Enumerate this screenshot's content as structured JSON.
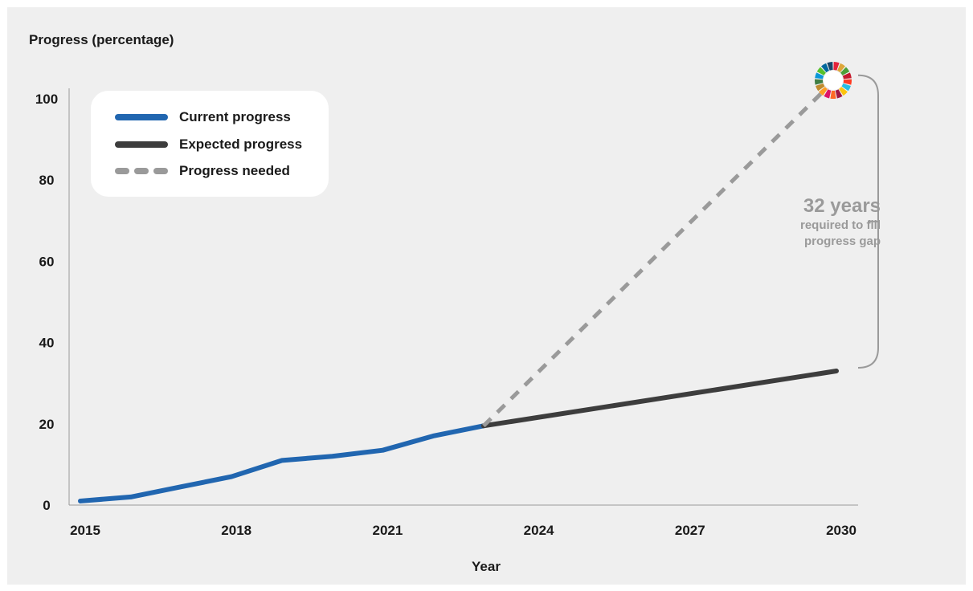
{
  "chart_data": {
    "type": "line",
    "ylabel": "Progress (percentage)",
    "xlabel": "Year",
    "xlim": [
      2015,
      2030
    ],
    "ylim": [
      0,
      100
    ],
    "x_ticks": [
      2015,
      2018,
      2021,
      2024,
      2027,
      2030
    ],
    "y_ticks": [
      0,
      20,
      40,
      60,
      80,
      100
    ],
    "grid": false,
    "legend_position": "top-left",
    "series": [
      {
        "name": "Current progress",
        "style": "solid",
        "color": "#2166b0",
        "points": [
          [
            2015,
            1
          ],
          [
            2016,
            2
          ],
          [
            2017,
            4.5
          ],
          [
            2018,
            7
          ],
          [
            2019,
            11
          ],
          [
            2020,
            12
          ],
          [
            2021,
            13.5
          ],
          [
            2022,
            17
          ],
          [
            2023,
            19.5
          ]
        ]
      },
      {
        "name": "Expected progress",
        "style": "solid",
        "color": "#3d3d3d",
        "points": [
          [
            2023,
            19.5
          ],
          [
            2030,
            33
          ]
        ]
      },
      {
        "name": "Progress needed",
        "style": "dashed",
        "color": "#9a9a9a",
        "points": [
          [
            2023,
            19.5
          ],
          [
            2030,
            105
          ]
        ]
      }
    ],
    "annotation": {
      "headline": "32 years",
      "line1": "required to fill",
      "line2": "progress gap",
      "bracket_from": 33,
      "bracket_to": 105
    },
    "target_icon": "sdg-wheel-icon",
    "sdg_colors": [
      "#e5243b",
      "#dda63a",
      "#4c9f38",
      "#c5192d",
      "#ff3a21",
      "#26bde2",
      "#fcc30b",
      "#a21942",
      "#fd6925",
      "#dd1367",
      "#fd9d24",
      "#bf8b2e",
      "#3f7e44",
      "#0a97d9",
      "#56c02b",
      "#00689d",
      "#19486a"
    ]
  }
}
